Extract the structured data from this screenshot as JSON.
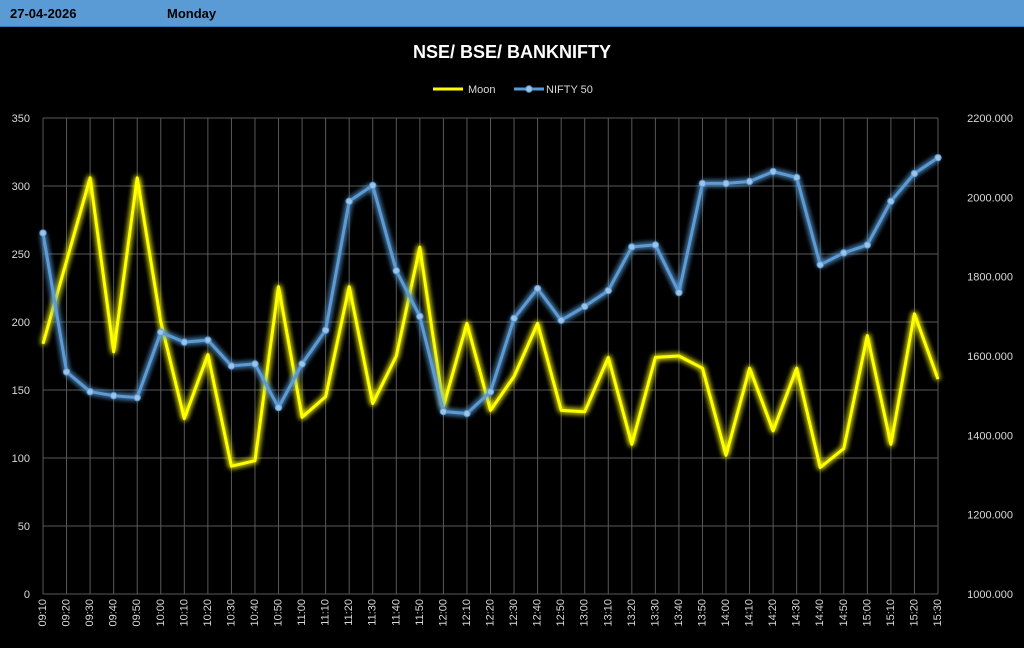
{
  "header": {
    "date": "27-04-2026",
    "day": "Monday"
  },
  "chart_data": {
    "type": "line",
    "title": "NSE/ BSE/ BANKNIFTY",
    "categories": [
      "09:10",
      "09:20",
      "09:30",
      "09:40",
      "09:50",
      "10:00",
      "10:10",
      "10:20",
      "10:30",
      "10:40",
      "10:50",
      "11:00",
      "11:10",
      "11:20",
      "11:30",
      "11:40",
      "11:50",
      "12:00",
      "12:10",
      "12:20",
      "12:30",
      "12:40",
      "12:50",
      "13:00",
      "13:10",
      "13:20",
      "13:30",
      "13:40",
      "13:50",
      "14:00",
      "14:10",
      "14:20",
      "14:30",
      "14:40",
      "14:50",
      "15:00",
      "15:10",
      "15:20",
      "15:30"
    ],
    "series": [
      {
        "name": "Moon",
        "axis": "left",
        "color": "#ffff00",
        "markers": false,
        "values": [
          184,
          245,
          306,
          178,
          306,
          200,
          129,
          176,
          94,
          98,
          226,
          130,
          145,
          226,
          140,
          175,
          255,
          138,
          199,
          135,
          160,
          199,
          135,
          134,
          174,
          110,
          174,
          175,
          166,
          102,
          166,
          120,
          166,
          93,
          107,
          190,
          110,
          206,
          158
        ]
      },
      {
        "name": "NIFTY 50",
        "axis": "right",
        "color": "#5b9bd5",
        "markers": true,
        "values": [
          1910,
          1560,
          1510,
          1500,
          1495,
          1660,
          1635,
          1640,
          1575,
          1580,
          1470,
          1580,
          1665,
          1990,
          2030,
          1815,
          1700,
          1460,
          1455,
          1510,
          1695,
          1770,
          1690,
          1725,
          1765,
          1875,
          1880,
          1760,
          2035,
          2035,
          2040,
          2065,
          2050,
          1830,
          1860,
          1880,
          1990,
          2060,
          2100
        ]
      }
    ],
    "yaxis_left": {
      "min": 0,
      "max": 350,
      "step": 50,
      "ticks": [
        "0",
        "50",
        "100",
        "150",
        "200",
        "250",
        "300",
        "350"
      ]
    },
    "yaxis_right": {
      "min": 1000,
      "max": 2200,
      "step": 200,
      "ticks": [
        "1000.000",
        "1200.000",
        "1400.000",
        "1600.000",
        "1800.000",
        "2000.000",
        "2200.000"
      ]
    },
    "grid": true,
    "legend_position": "top-center"
  }
}
